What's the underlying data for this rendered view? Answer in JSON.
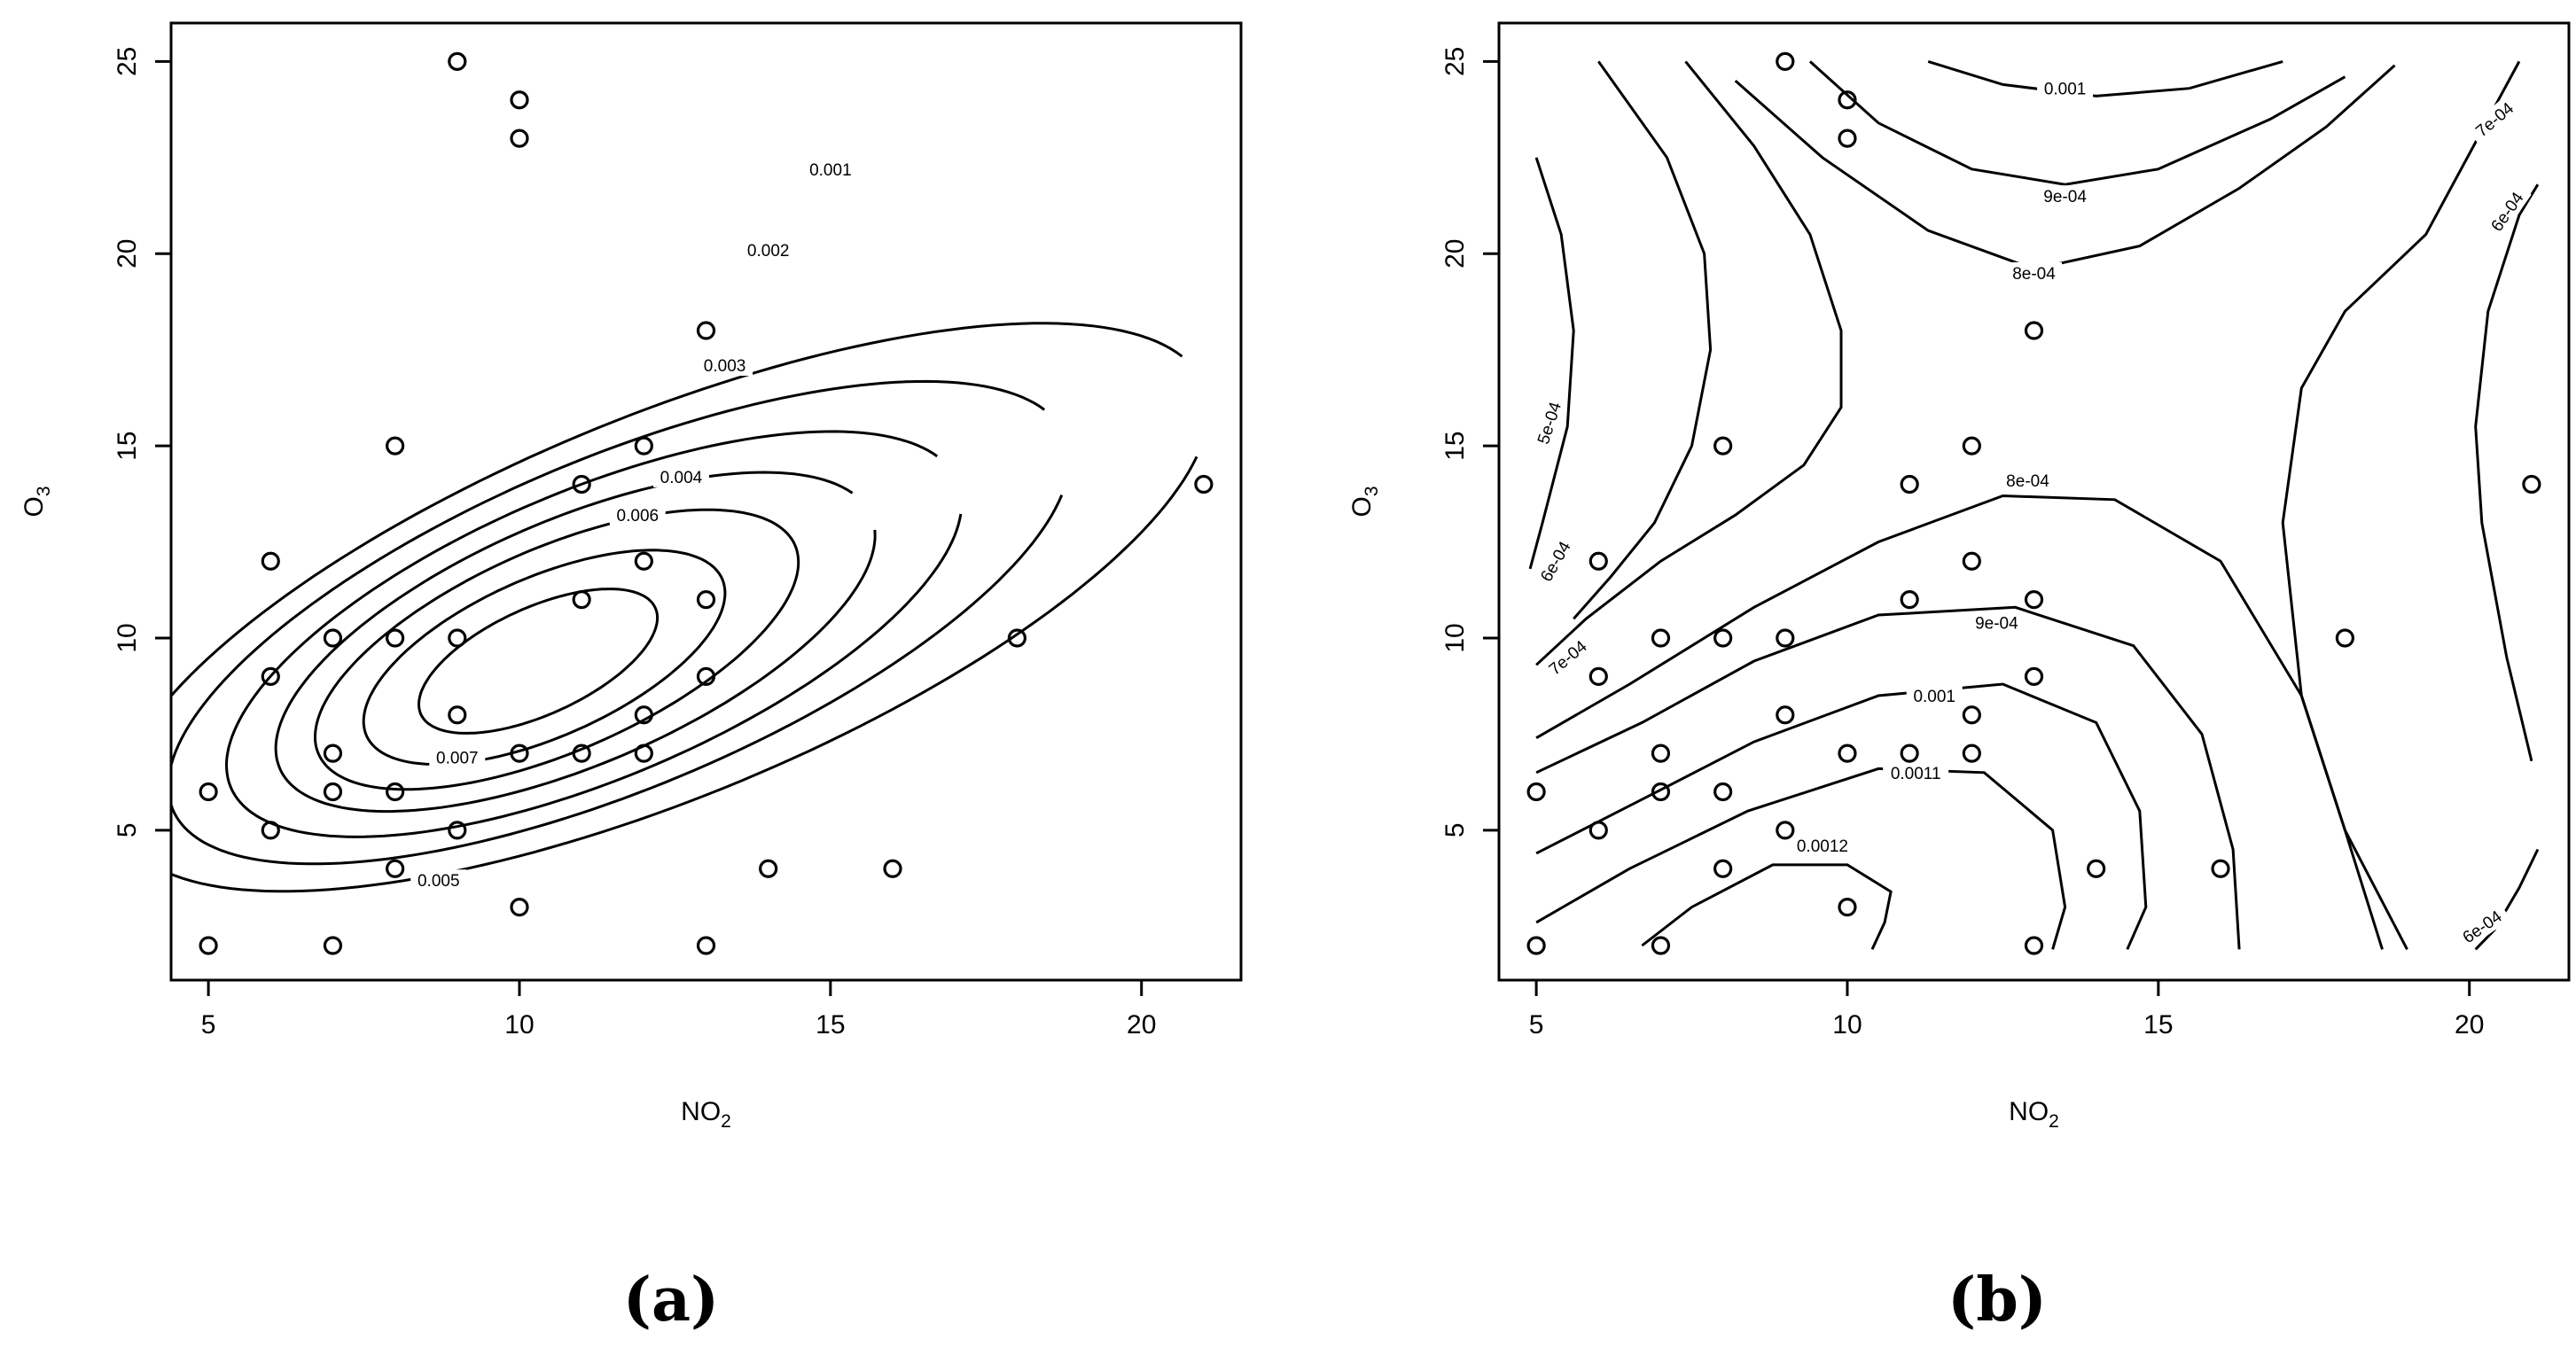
{
  "chart_data": [
    {
      "panel": "(a)",
      "type": "scatter",
      "title": "",
      "xlabel": {
        "base": "NO",
        "sub": "2"
      },
      "ylabel": {
        "base": "O",
        "sub": "3"
      },
      "xlim": [
        4.4,
        21.6
      ],
      "ylim": [
        1.1,
        26
      ],
      "xticks": [
        5,
        10,
        15,
        20
      ],
      "yticks": [
        5,
        10,
        15,
        20,
        25
      ],
      "points": [
        [
          5,
          2
        ],
        [
          5,
          6
        ],
        [
          6,
          5
        ],
        [
          6,
          9
        ],
        [
          6,
          12
        ],
        [
          7,
          2
        ],
        [
          7,
          6
        ],
        [
          7,
          7
        ],
        [
          7,
          10
        ],
        [
          8,
          4
        ],
        [
          8,
          6
        ],
        [
          8,
          10
        ],
        [
          8,
          15
        ],
        [
          9,
          5
        ],
        [
          9,
          8
        ],
        [
          9,
          10
        ],
        [
          9,
          25
        ],
        [
          10,
          3
        ],
        [
          10,
          7
        ],
        [
          10,
          23
        ],
        [
          10,
          24
        ],
        [
          11,
          7
        ],
        [
          11,
          11
        ],
        [
          11,
          14
        ],
        [
          12,
          7
        ],
        [
          12,
          8
        ],
        [
          12,
          12
        ],
        [
          12,
          15
        ],
        [
          13,
          2
        ],
        [
          13,
          9
        ],
        [
          13,
          11
        ],
        [
          13,
          18
        ],
        [
          14,
          4
        ],
        [
          16,
          4
        ],
        [
          18,
          10
        ],
        [
          21,
          14
        ]
      ],
      "contour_labels": [
        "0.001",
        "0.002",
        "0.003",
        "0.004",
        "0.005",
        "0.006",
        "0.007"
      ],
      "contours": [
        {
          "level": "0.001",
          "center": [
            12.3,
            10.8
          ],
          "a": 10.6,
          "b": 4.4,
          "angle": 38,
          "span": [
            0,
            330
          ]
        },
        {
          "level": "0.002",
          "center": [
            11.6,
            10.4
          ],
          "a": 8.8,
          "b": 3.8,
          "angle": 39,
          "span": [
            0,
            330
          ]
        },
        {
          "level": "0.003",
          "center": [
            11.2,
            10.1
          ],
          "a": 7.2,
          "b": 3.3,
          "angle": 40,
          "span": [
            0,
            335
          ]
        },
        {
          "level": "0.004",
          "center": [
            10.9,
            9.9
          ],
          "a": 5.9,
          "b": 2.8,
          "angle": 41,
          "span": [
            0,
            340
          ]
        },
        {
          "level": "0.005",
          "center": [
            10.6,
            9.7
          ],
          "a": 4.8,
          "b": 2.3,
          "angle": 42,
          "span": [
            0,
            360
          ]
        },
        {
          "level": "0.006",
          "center": [
            10.4,
            9.5
          ],
          "a": 3.6,
          "b": 1.8,
          "angle": 43,
          "span": [
            0,
            360
          ]
        },
        {
          "level": "0.007",
          "center": [
            10.3,
            9.4
          ],
          "a": 2.4,
          "b": 1.2,
          "angle": 44,
          "span": [
            0,
            360
          ]
        }
      ],
      "contour_label_positions": [
        {
          "text": "0.001",
          "x": 15.0,
          "y": 22.2,
          "rot": 0
        },
        {
          "text": "0.002",
          "x": 14.0,
          "y": 20.1,
          "rot": 0
        },
        {
          "text": "0.003",
          "x": 13.3,
          "y": 17.1,
          "rot": 0
        },
        {
          "text": "0.004",
          "x": 12.6,
          "y": 14.2,
          "rot": 0
        },
        {
          "text": "0.005",
          "x": 8.7,
          "y": 3.7,
          "rot": 0
        },
        {
          "text": "0.006",
          "x": 11.9,
          "y": 13.2,
          "rot": 0
        },
        {
          "text": "0.007",
          "x": 9.0,
          "y": 6.9,
          "rot": 0
        }
      ]
    },
    {
      "panel": "(b)",
      "type": "scatter",
      "title": "",
      "xlabel": {
        "base": "NO",
        "sub": "2"
      },
      "ylabel": {
        "base": "O",
        "sub": "3"
      },
      "xlim": [
        4.4,
        21.6
      ],
      "ylim": [
        1.1,
        26
      ],
      "xticks": [
        5,
        10,
        15,
        20
      ],
      "yticks": [
        5,
        10,
        15,
        20,
        25
      ],
      "points": [
        [
          5,
          2
        ],
        [
          5,
          6
        ],
        [
          6,
          5
        ],
        [
          6,
          9
        ],
        [
          6,
          12
        ],
        [
          7,
          2
        ],
        [
          7,
          6
        ],
        [
          7,
          7
        ],
        [
          7,
          10
        ],
        [
          8,
          4
        ],
        [
          8,
          6
        ],
        [
          8,
          10
        ],
        [
          8,
          15
        ],
        [
          9,
          5
        ],
        [
          9,
          8
        ],
        [
          9,
          10
        ],
        [
          9,
          25
        ],
        [
          10,
          3
        ],
        [
          10,
          7
        ],
        [
          10,
          23
        ],
        [
          10,
          24
        ],
        [
          11,
          7
        ],
        [
          11,
          11
        ],
        [
          11,
          14
        ],
        [
          12,
          7
        ],
        [
          12,
          8
        ],
        [
          12,
          12
        ],
        [
          12,
          15
        ],
        [
          13,
          2
        ],
        [
          13,
          9
        ],
        [
          13,
          11
        ],
        [
          13,
          18
        ],
        [
          14,
          4
        ],
        [
          16,
          4
        ],
        [
          18,
          10
        ],
        [
          21,
          14
        ]
      ],
      "contour_labels": [
        "0.001",
        "9e-04",
        "8e-04",
        "7e-04",
        "6e-04",
        "5e-04",
        "0.0011",
        "0.0012"
      ],
      "contour_label_positions": [
        {
          "text": "0.001",
          "x": 13.5,
          "y": 24.3,
          "rot": 0
        },
        {
          "text": "9e-04",
          "x": 13.5,
          "y": 21.5,
          "rot": 0
        },
        {
          "text": "8e-04",
          "x": 13.0,
          "y": 19.5,
          "rot": 0
        },
        {
          "text": "7e-04",
          "x": 20.4,
          "y": 23.5,
          "rot": -40
        },
        {
          "text": "6e-04",
          "x": 20.6,
          "y": 21.1,
          "rot": -55
        },
        {
          "text": "5e-04",
          "x": 5.2,
          "y": 15.6,
          "rot": -72
        },
        {
          "text": "6e-04",
          "x": 5.3,
          "y": 12.0,
          "rot": -60
        },
        {
          "text": "7e-04",
          "x": 5.5,
          "y": 9.5,
          "rot": -40
        },
        {
          "text": "8e-04",
          "x": 12.9,
          "y": 14.1,
          "rot": 0
        },
        {
          "text": "9e-04",
          "x": 12.4,
          "y": 10.4,
          "rot": 0
        },
        {
          "text": "0.001",
          "x": 11.4,
          "y": 8.5,
          "rot": 0
        },
        {
          "text": "0.0011",
          "x": 11.1,
          "y": 6.5,
          "rot": 0
        },
        {
          "text": "0.0012",
          "x": 9.6,
          "y": 4.6,
          "rot": 0
        },
        {
          "text": "6e-04",
          "x": 20.2,
          "y": 2.5,
          "rot": -35
        }
      ],
      "contours": [
        {
          "level": "0.001",
          "points": [
            [
              11.3,
              25.0
            ],
            [
              12.5,
              24.4
            ],
            [
              14.0,
              24.1
            ],
            [
              15.5,
              24.3
            ],
            [
              17.0,
              25.0
            ]
          ]
        },
        {
          "level": "9e-04",
          "points": [
            [
              9.4,
              25.0
            ],
            [
              10.5,
              23.4
            ],
            [
              12.0,
              22.2
            ],
            [
              13.5,
              21.8
            ],
            [
              15.0,
              22.2
            ],
            [
              16.8,
              23.5
            ],
            [
              18.0,
              24.6
            ]
          ]
        },
        {
          "level": "8e-04",
          "points": [
            [
              8.2,
              24.5
            ],
            [
              9.6,
              22.5
            ],
            [
              11.3,
              20.6
            ],
            [
              13.0,
              19.6
            ],
            [
              14.7,
              20.2
            ],
            [
              16.3,
              21.7
            ],
            [
              17.7,
              23.3
            ],
            [
              18.8,
              24.9
            ]
          ]
        },
        {
          "level": "upper-left-1",
          "points": [
            [
              6.0,
              25.0
            ],
            [
              7.1,
              22.5
            ],
            [
              7.7,
              20.0
            ],
            [
              7.8,
              17.5
            ],
            [
              7.5,
              15.0
            ],
            [
              6.9,
              13.0
            ],
            [
              6.2,
              11.6
            ],
            [
              5.6,
              10.5
            ]
          ]
        },
        {
          "level": "upper-left-2",
          "points": [
            [
              7.4,
              25.0
            ],
            [
              8.5,
              22.8
            ],
            [
              9.4,
              20.5
            ],
            [
              9.9,
              18.0
            ],
            [
              9.9,
              16.0
            ],
            [
              9.3,
              14.5
            ],
            [
              8.2,
              13.2
            ],
            [
              7.0,
              12.0
            ],
            [
              5.8,
              10.5
            ],
            [
              5.0,
              9.3
            ]
          ]
        },
        {
          "level": "left-1",
          "points": [
            [
              5.0,
              22.5
            ],
            [
              5.4,
              20.5
            ],
            [
              5.6,
              18.0
            ],
            [
              5.5,
              15.5
            ],
            [
              5.1,
              13.0
            ],
            [
              4.9,
              11.8
            ]
          ]
        },
        {
          "level": "8e-04-lower",
          "points": [
            [
              5.0,
              7.4
            ],
            [
              6.5,
              8.8
            ],
            [
              8.5,
              10.8
            ],
            [
              10.5,
              12.5
            ],
            [
              12.5,
              13.7
            ],
            [
              14.3,
              13.6
            ],
            [
              16.0,
              12.0
            ],
            [
              17.3,
              8.5
            ],
            [
              18.0,
              5.0
            ],
            [
              18.6,
              1.9
            ]
          ]
        },
        {
          "level": "9e-04-lower",
          "points": [
            [
              5.0,
              6.5
            ],
            [
              6.7,
              7.8
            ],
            [
              8.5,
              9.4
            ],
            [
              10.5,
              10.6
            ],
            [
              12.7,
              10.8
            ],
            [
              14.6,
              9.8
            ],
            [
              15.7,
              7.5
            ],
            [
              16.2,
              4.5
            ],
            [
              16.3,
              1.9
            ]
          ]
        },
        {
          "level": "0.001-lower",
          "points": [
            [
              5.0,
              4.4
            ],
            [
              6.7,
              5.8
            ],
            [
              8.5,
              7.3
            ],
            [
              10.5,
              8.5
            ],
            [
              12.5,
              8.8
            ],
            [
              14.0,
              7.8
            ],
            [
              14.7,
              5.5
            ],
            [
              14.8,
              3.0
            ],
            [
              14.5,
              1.9
            ]
          ]
        },
        {
          "level": "0.0011-lower",
          "points": [
            [
              5.0,
              2.6
            ],
            [
              6.5,
              4.0
            ],
            [
              8.4,
              5.5
            ],
            [
              10.5,
              6.6
            ],
            [
              12.2,
              6.5
            ],
            [
              13.3,
              5.0
            ],
            [
              13.5,
              3.0
            ],
            [
              13.3,
              1.9
            ]
          ]
        },
        {
          "level": "0.0012-lower",
          "points": [
            [
              6.7,
              2.0
            ],
            [
              7.5,
              3.0
            ],
            [
              8.8,
              4.1
            ],
            [
              10.0,
              4.1
            ],
            [
              10.7,
              3.4
            ],
            [
              10.6,
              2.6
            ],
            [
              10.4,
              1.9
            ]
          ]
        },
        {
          "level": "right-7e-04",
          "points": [
            [
              19.0,
              1.9
            ],
            [
              18.0,
              5.0
            ],
            [
              17.3,
              8.5
            ],
            [
              17.0,
              13.0
            ],
            [
              17.3,
              16.5
            ],
            [
              18.0,
              18.5
            ],
            [
              19.3,
              20.5
            ],
            [
              20.3,
              23.5
            ],
            [
              20.8,
              25.0
            ]
          ]
        },
        {
          "level": "right-6e-04",
          "points": [
            [
              21.0,
              6.8
            ],
            [
              20.6,
              9.5
            ],
            [
              20.2,
              13.0
            ],
            [
              20.1,
              15.5
            ],
            [
              20.3,
              18.5
            ],
            [
              20.8,
              21.0
            ],
            [
              21.1,
              21.8
            ]
          ]
        },
        {
          "level": "right-6e-04-low",
          "points": [
            [
              21.1,
              4.5
            ],
            [
              20.8,
              3.5
            ],
            [
              20.4,
              2.4
            ],
            [
              20.1,
              1.9
            ]
          ]
        }
      ]
    }
  ],
  "panel_tags": [
    "(a)",
    "(b)"
  ]
}
